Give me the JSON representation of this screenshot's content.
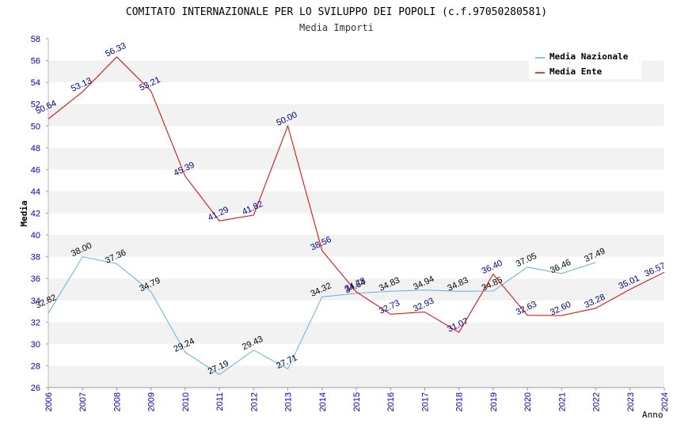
{
  "chart_data": {
    "type": "line",
    "title": "COMITATO INTERNAZIONALE PER LO SVILUPPO DEI POPOLI (c.f.97050280581)",
    "subtitle": "Media Importi",
    "xlabel": "Anno",
    "ylabel": "Media",
    "ylim": [
      26,
      58
    ],
    "yticks": [
      26,
      28,
      30,
      32,
      34,
      36,
      38,
      40,
      42,
      44,
      46,
      48,
      50,
      52,
      54,
      56,
      58
    ],
    "x": [
      2006,
      2007,
      2008,
      2009,
      2010,
      2011,
      2012,
      2013,
      2014,
      2015,
      2016,
      2017,
      2018,
      2019,
      2020,
      2021,
      2022,
      2023,
      2024
    ],
    "legend_position": "top-right",
    "series": [
      {
        "name": "Media Nazionale",
        "color": "#6aaee6",
        "label_color": "#000000",
        "x": [
          2006,
          2007,
          2008,
          2009,
          2010,
          2011,
          2012,
          2013,
          2014,
          2015,
          2016,
          2017,
          2018,
          2019,
          2020,
          2021,
          2022
        ],
        "values": [
          32.82,
          38.0,
          37.36,
          34.79,
          29.24,
          27.19,
          29.43,
          27.71,
          34.32,
          34.64,
          34.83,
          34.94,
          34.83,
          34.85,
          37.05,
          36.46,
          37.49
        ],
        "labels": [
          "32.82",
          "38.00",
          "37.36",
          "34.79",
          "29.24",
          "27.19",
          "29.43",
          "27.71",
          "34.32",
          "34.64",
          "34.83",
          "34.94",
          "34.83",
          "34.85",
          "37.05",
          "36.46",
          "37.49"
        ]
      },
      {
        "name": "Media Ente",
        "color": "#e00000",
        "label_color": "#00008b",
        "x": [
          2006,
          2007,
          2008,
          2009,
          2010,
          2011,
          2012,
          2013,
          2014,
          2015,
          2016,
          2017,
          2018,
          2019,
          2020,
          2021,
          2022,
          2023,
          2024
        ],
        "values": [
          50.64,
          53.13,
          56.33,
          53.21,
          45.39,
          41.29,
          41.82,
          50.0,
          38.56,
          34.78,
          32.73,
          32.93,
          31.07,
          36.4,
          32.63,
          32.6,
          33.28,
          35.01,
          36.57
        ],
        "labels": [
          "50.64",
          "53.13",
          "56.33",
          "53.21",
          "45.39",
          "41.29",
          "41.82",
          "50.00",
          "38.56",
          "34.78",
          "32.73",
          "32.93",
          "31.07",
          "36.40",
          "32.63",
          "32.60",
          "33.28",
          "35.01",
          "36.57"
        ]
      }
    ]
  }
}
